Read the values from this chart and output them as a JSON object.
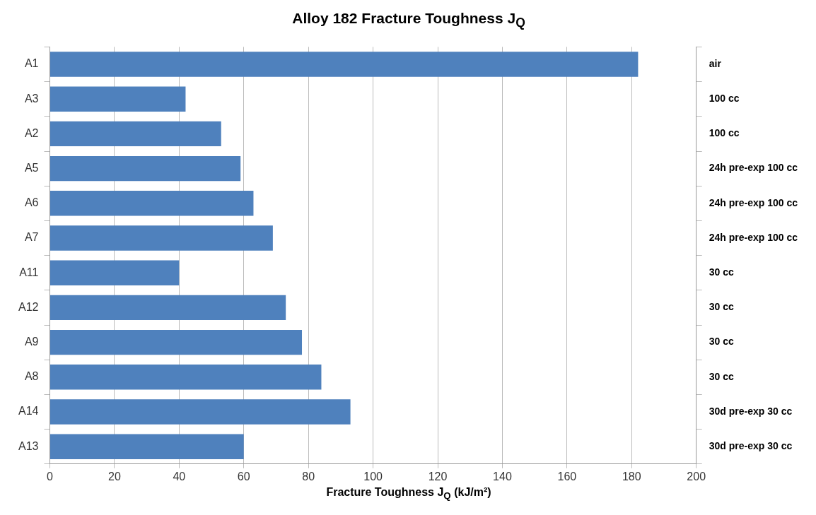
{
  "chart_data": {
    "type": "bar",
    "orientation": "horizontal",
    "title": "Alloy 182 Fracture Toughness J$_{Q}$",
    "xlabel": "Fracture Toughness J$_{Q}$ (kJ/m²)",
    "categories": [
      "A1",
      "A3",
      "A2",
      "A5",
      "A6",
      "A7",
      "A11",
      "A12",
      "A9",
      "A8",
      "A14",
      "A13"
    ],
    "y2_categories": [
      "air",
      "100 cc",
      "100 cc",
      "24h pre-exp 100 cc",
      "24h pre-exp 100 cc",
      "24h pre-exp 100 cc",
      "30 cc",
      "30 cc",
      "30 cc",
      "30 cc",
      "30d pre-exp 30 cc",
      "30d pre-exp 30 cc"
    ],
    "values": [
      182,
      42,
      53,
      59,
      63,
      69,
      40,
      73,
      78,
      84,
      93,
      60
    ],
    "color": "#4f81bd",
    "xlim": [
      0,
      200
    ],
    "xticks": [
      0,
      20,
      40,
      60,
      80,
      100,
      120,
      140,
      160,
      180,
      200
    ],
    "grid": "x",
    "legend": false
  }
}
